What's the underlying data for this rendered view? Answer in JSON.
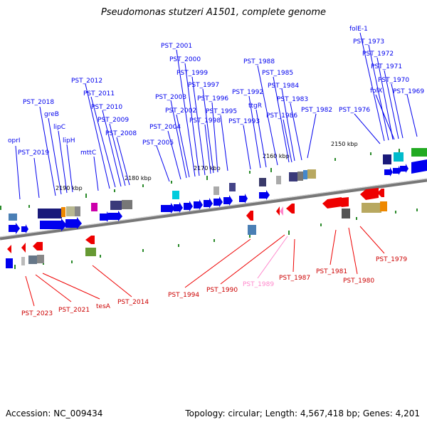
{
  "title": "Pseudomonas stutzeri A1501, complete genome",
  "accession": "Accession: NC_009434",
  "summary": "Topology: circular; Length: 4,567,418 bp; Genes: 4,201",
  "ticks": [
    "2190 kbp",
    "2180 kbp",
    "2170 kbp",
    "2160 kbp",
    "2150 kbp"
  ],
  "labels_forward": [
    "oprI",
    "PST_2019",
    "PST_2018",
    "greB",
    "lipC",
    "lipH",
    "mttC",
    "PST_2012",
    "PST_2011",
    "PST_2010",
    "PST_2009",
    "PST_2008",
    "PST_2005",
    "PST_2004",
    "PST_2003",
    "PST_2002",
    "PST_2001",
    "PST_2000",
    "PST_1999",
    "PST_1998",
    "PST_1997",
    "PST_1996",
    "PST_1995",
    "PST_1993",
    "PST_1992",
    "ttgR",
    "PST_1988",
    "PST_1986",
    "PST_1985",
    "PST_1984",
    "PST_1983",
    "PST_1982",
    "PST_1976",
    "folE-1",
    "PST_1973",
    "PST_1972",
    "folX",
    "PST_1971",
    "PST_1970",
    "PST_1969"
  ],
  "labels_reverse": [
    "PST_2023",
    "PST_2021",
    "tesA",
    "PST_2014",
    "PST_1994",
    "PST_1990",
    "PST_1989",
    "PST_1987",
    "PST_1981",
    "PST_1980",
    "PST_1979"
  ],
  "colors": {
    "forward": "#0000ee",
    "reverse": "#ee0000",
    "pseudo": "#ff88cc",
    "backbone": "#888888",
    "tick": "#2a8a2a"
  }
}
